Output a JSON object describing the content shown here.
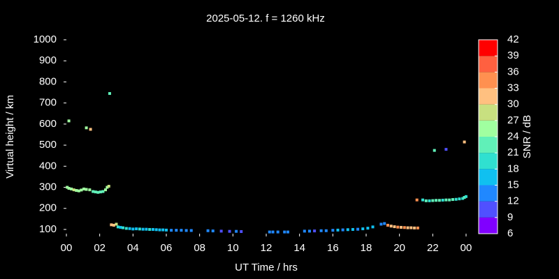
{
  "chart_data": {
    "type": "scatter",
    "title": "2025-05-12. f = 1260 kHz",
    "x_label": "UT Time / hrs",
    "y_label": "Virtual height / km",
    "xlim": [
      0,
      24
    ],
    "xticks": [
      {
        "value": 0,
        "label": "00"
      },
      {
        "value": 2,
        "label": "02"
      },
      {
        "value": 4,
        "label": "04"
      },
      {
        "value": 6,
        "label": "06"
      },
      {
        "value": 8,
        "label": "08"
      },
      10,
      12,
      14,
      16,
      18,
      20,
      22,
      {
        "value": 24,
        "label": "00"
      }
    ],
    "ylim": [
      80,
      1000
    ],
    "yticks": [
      100,
      200,
      300,
      400,
      500,
      600,
      700,
      800,
      900,
      1000
    ],
    "colorbar": {
      "label": "SNR / dB",
      "lim": [
        6,
        42
      ],
      "ticks": [
        6,
        9,
        12,
        15,
        18,
        21,
        24,
        27,
        30,
        33,
        36,
        39,
        42
      ],
      "colors": [
        "#8000ff",
        "#5050ff",
        "#2088ff",
        "#10c0f0",
        "#30e0d0",
        "#60f0b8",
        "#a0ffa0",
        "#c8e080",
        "#ffc080",
        "#ff9050",
        "#ff6040",
        "#ff0000"
      ]
    },
    "series": [
      {
        "x": [
          0.05,
          0.15,
          0.3,
          0.45,
          0.6,
          0.75,
          0.9,
          1.05,
          1.2,
          1.4,
          1.6,
          1.75,
          1.9,
          2.05,
          2.2,
          2.35,
          2.45,
          2.55,
          0.15,
          1.2,
          1.45,
          2.6,
          2.7,
          2.85,
          3.0,
          3.1,
          3.25,
          3.4,
          3.6,
          3.8,
          4.0,
          4.2,
          4.4,
          4.6,
          4.8,
          5.0,
          5.2,
          5.4,
          5.6,
          5.8,
          6.0,
          6.3,
          6.6,
          6.9,
          7.2,
          7.5,
          8.5,
          8.8,
          9.3,
          9.8,
          10.2,
          10.5,
          12.2,
          12.4,
          12.7,
          13.1,
          13.3,
          14.3,
          14.6,
          14.9,
          15.3,
          15.6,
          16.0,
          16.3,
          16.6,
          16.9,
          17.2,
          17.5,
          17.8,
          18.1,
          18.4,
          18.9,
          19.1,
          19.3,
          19.5,
          19.7,
          19.9,
          20.1,
          20.3,
          20.5,
          20.7,
          20.9,
          21.1,
          21.05,
          21.4,
          21.6,
          21.8,
          22.0,
          22.2,
          22.4,
          22.6,
          22.8,
          23.0,
          23.2,
          23.4,
          23.6,
          23.8,
          23.9,
          24.0,
          22.1,
          22.8,
          23.9
        ],
        "values": [
          300,
          295,
          292,
          288,
          285,
          283,
          287,
          292,
          290,
          288,
          280,
          278,
          276,
          278,
          280,
          288,
          300,
          305,
          615,
          582,
          575,
          745,
          122,
          120,
          125,
          112,
          110,
          108,
          105,
          104,
          102,
          103,
          102,
          101,
          101,
          100,
          100,
          99,
          98,
          98,
          97,
          96,
          96,
          96,
          95,
          95,
          94,
          93,
          92,
          91,
          91,
          90,
          88,
          88,
          88,
          88,
          88,
          92,
          92,
          93,
          94,
          94,
          96,
          97,
          98,
          99,
          100,
          101,
          103,
          106,
          112,
          125,
          128,
          120,
          116,
          113,
          111,
          110,
          109,
          108,
          108,
          107,
          107,
          240,
          240,
          236,
          236,
          237,
          238,
          238,
          239,
          240,
          240,
          242,
          243,
          245,
          247,
          252,
          256,
          475,
          480,
          515
        ],
        "snr": [
          24,
          24,
          25,
          27,
          26,
          25,
          24,
          24,
          25,
          26,
          23,
          22,
          21,
          22,
          23,
          24,
          26,
          27,
          24,
          25,
          31,
          22,
          30,
          30,
          28,
          18,
          17,
          18,
          19,
          17,
          16,
          17,
          18,
          16,
          17,
          19,
          16,
          15,
          16,
          17,
          16,
          14,
          13,
          14,
          12,
          12,
          12,
          12,
          11,
          11,
          12,
          11,
          13,
          12,
          12,
          13,
          12,
          12,
          12,
          11,
          12,
          12,
          14,
          15,
          13,
          15,
          16,
          14,
          16,
          15,
          17,
          12,
          13,
          33,
          31,
          32,
          33,
          32,
          33,
          32,
          31,
          32,
          33,
          33,
          20,
          21,
          20,
          22,
          21,
          22,
          20,
          21,
          21,
          22,
          20,
          19,
          20,
          21,
          20,
          22,
          10,
          31
        ]
      }
    ]
  }
}
